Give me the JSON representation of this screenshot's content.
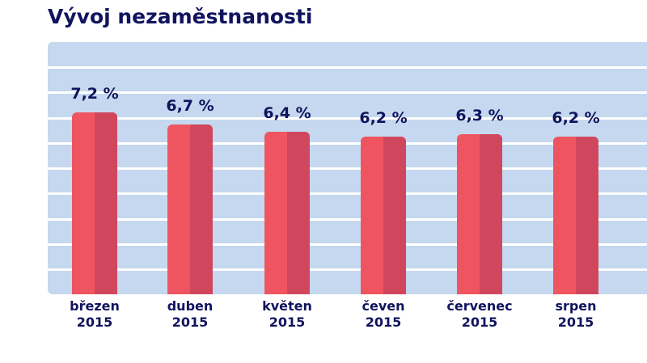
{
  "chart_data": {
    "type": "bar",
    "title": "Vývoj nezaměstnanosti",
    "categories": [
      {
        "month": "březen",
        "year": "2015"
      },
      {
        "month": "duben",
        "year": "2015"
      },
      {
        "month": "květen",
        "year": "2015"
      },
      {
        "month": "čeven",
        "year": "2015"
      },
      {
        "month": "červenec",
        "year": "2015"
      },
      {
        "month": "srpen",
        "year": "2015"
      }
    ],
    "values": [
      7.2,
      6.7,
      6.4,
      6.2,
      6.3,
      6.2
    ],
    "value_labels": [
      "7,2 %",
      "6,7 %",
      "6,4 %",
      "6,2 %",
      "6,3 %",
      "6,2 %"
    ],
    "unit": "%",
    "grid": true,
    "colors": {
      "bar": "#ef5560",
      "bar_shade": "#d0475d",
      "panel": "#c6d8ef",
      "text": "#10145e"
    }
  }
}
